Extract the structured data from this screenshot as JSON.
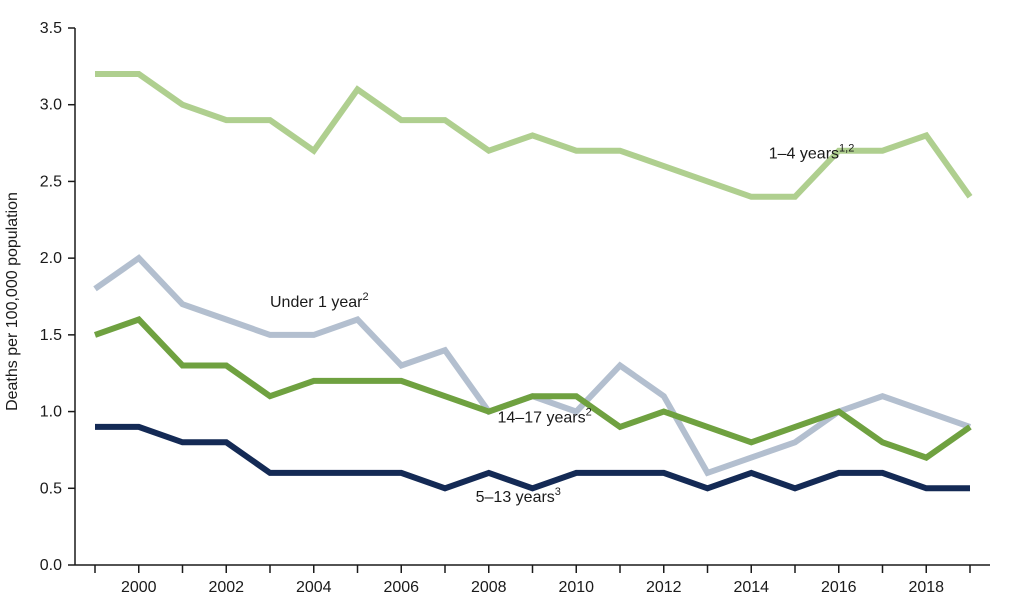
{
  "chart_data": {
    "type": "line",
    "title": "",
    "xlabel": "",
    "ylabel": "Deaths per 100,000 population",
    "xlim": [
      1999,
      2019
    ],
    "ylim": [
      0,
      3.5
    ],
    "x": [
      1999,
      2000,
      2001,
      2002,
      2003,
      2004,
      2005,
      2006,
      2007,
      2008,
      2009,
      2010,
      2011,
      2012,
      2013,
      2014,
      2015,
      2016,
      2017,
      2018,
      2019
    ],
    "x_ticks": [
      2000,
      2002,
      2004,
      2006,
      2008,
      2010,
      2012,
      2014,
      2016,
      2018
    ],
    "x_tick_labels": [
      "2000",
      "2002",
      "2004",
      "2006",
      "2008",
      "2010",
      "2012",
      "2014",
      "2016",
      "2018"
    ],
    "y_ticks": [
      0,
      0.5,
      1.0,
      1.5,
      2.0,
      2.5,
      3.0,
      3.5
    ],
    "y_tick_labels": [
      "0.0",
      "0.5",
      "1.0",
      "1.5",
      "2.0",
      "2.5",
      "3.0",
      "3.5"
    ],
    "legend": "inline labels",
    "series": [
      {
        "id": "age-1-4",
        "name": "1–4 years",
        "sup": "1,2",
        "color": "#afcf8f",
        "values": [
          3.2,
          3.2,
          3.0,
          2.9,
          2.9,
          2.7,
          3.1,
          2.9,
          2.9,
          2.7,
          2.8,
          2.7,
          2.7,
          2.6,
          2.5,
          2.4,
          2.4,
          2.7,
          2.7,
          2.8,
          2.4
        ],
        "label_anchor": {
          "x": 2014.4,
          "y": 2.65
        }
      },
      {
        "id": "under-1",
        "name": "Under 1 year",
        "sup": "2",
        "color": "#b3bfcf",
        "values": [
          1.8,
          2.0,
          1.7,
          1.6,
          1.5,
          1.5,
          1.6,
          1.3,
          1.4,
          1.0,
          1.1,
          1.0,
          1.3,
          1.1,
          0.6,
          0.7,
          0.8,
          1.0,
          1.1,
          1.0,
          0.9
        ],
        "label_anchor": {
          "x": 2003.0,
          "y": 1.68
        }
      },
      {
        "id": "age-14-17",
        "name": "14–17 years",
        "sup": "2",
        "color": "#6fa140",
        "values": [
          1.5,
          1.6,
          1.3,
          1.3,
          1.1,
          1.2,
          1.2,
          1.2,
          1.1,
          1.0,
          1.1,
          1.1,
          0.9,
          1.0,
          0.9,
          0.8,
          0.9,
          1.0,
          0.8,
          0.7,
          0.9
        ],
        "label_anchor": {
          "x": 2008.2,
          "y": 0.93
        }
      },
      {
        "id": "age-5-13",
        "name": "5–13 years",
        "sup": "3",
        "color": "#142a55",
        "values": [
          0.9,
          0.9,
          0.8,
          0.8,
          0.6,
          0.6,
          0.6,
          0.6,
          0.5,
          0.6,
          0.5,
          0.6,
          0.6,
          0.6,
          0.5,
          0.6,
          0.5,
          0.6,
          0.6,
          0.5,
          0.5
        ],
        "label_anchor": {
          "x": 2007.7,
          "y": 0.41
        }
      }
    ]
  }
}
